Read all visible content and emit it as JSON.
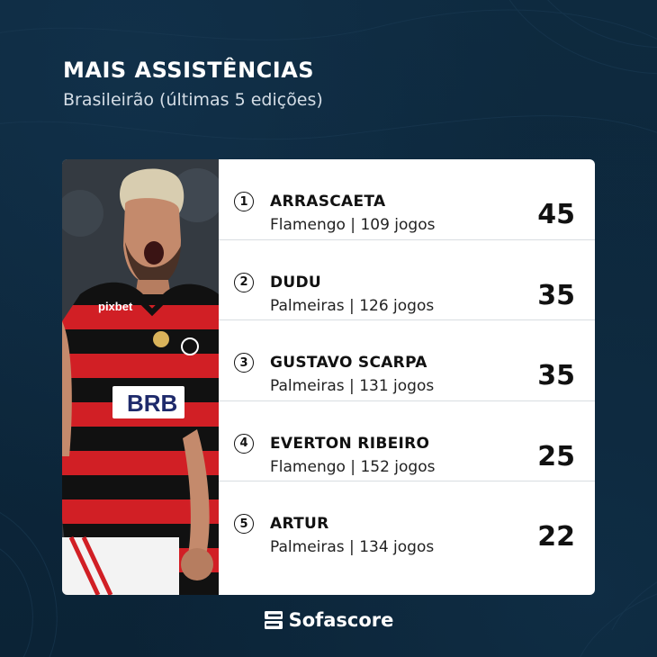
{
  "header": {
    "title": "MAIS ASSISTÊNCIAS",
    "subtitle": "Brasileirão (últimas 5 edições)"
  },
  "ranking": [
    {
      "rank": "1",
      "name": "ARRASCAETA",
      "club": "Flamengo",
      "games": "109 jogos",
      "assists": "45"
    },
    {
      "rank": "2",
      "name": "DUDU",
      "club": "Palmeiras",
      "games": "126 jogos",
      "assists": "35"
    },
    {
      "rank": "3",
      "name": "GUSTAVO SCARPA",
      "club": "Palmeiras",
      "games": "131 jogos",
      "assists": "35"
    },
    {
      "rank": "4",
      "name": "EVERTON RIBEIRO",
      "club": "Flamengo",
      "games": "152 jogos",
      "assists": "25"
    },
    {
      "rank": "5",
      "name": "ARTUR",
      "club": "Palmeiras",
      "games": "134 jogos",
      "assists": "22"
    }
  ],
  "photo": {
    "jersey_text": "pixbet",
    "sponsor": "BRB"
  },
  "brand": {
    "name": "Sofascore",
    "icon": "sofascore-logo-icon"
  },
  "colors": {
    "background": "#0c2538",
    "card": "#ffffff",
    "jersey_red": "#d11f25",
    "jersey_black": "#111111"
  }
}
